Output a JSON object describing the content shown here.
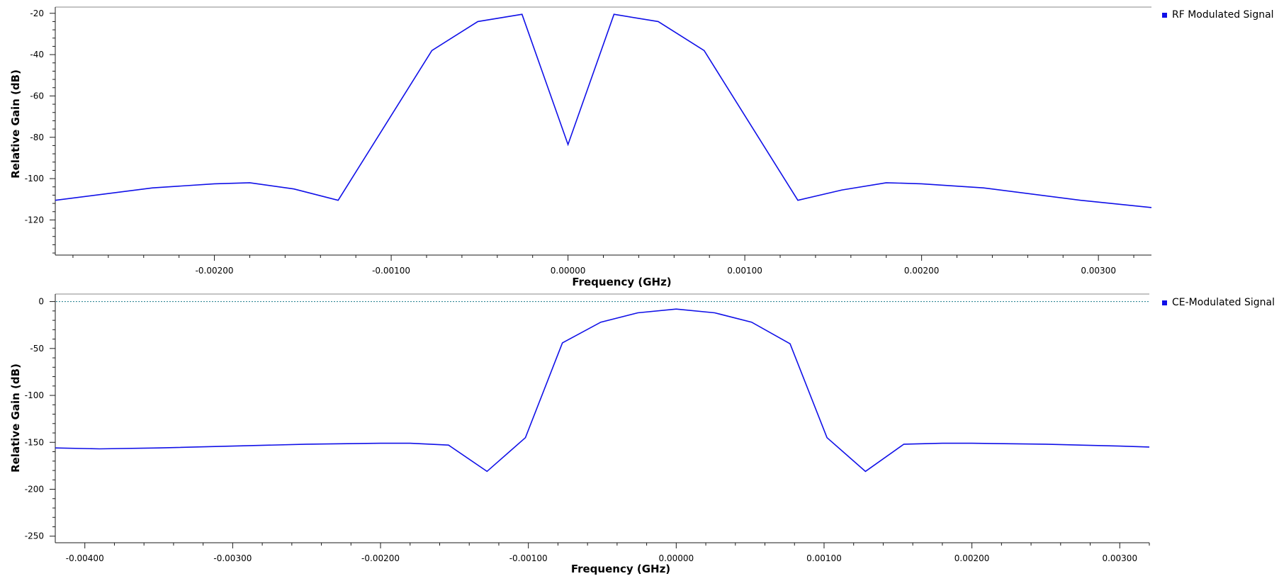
{
  "chart_data": [
    {
      "type": "line",
      "xlabel": "Frequency (GHz)",
      "ylabel": "Relative Gain (dB)",
      "xlim": [
        -0.0029,
        0.0033
      ],
      "ylim": [
        -137,
        -17
      ],
      "x_ticks": [
        -0.002,
        -0.001,
        0.0,
        0.001,
        0.002,
        0.003
      ],
      "x_tick_labels": [
        "-0.00200",
        "-0.00100",
        "0.00000",
        "0.00100",
        "0.00200",
        "0.00300"
      ],
      "y_ticks": [
        -20,
        -40,
        -60,
        -80,
        -100,
        -120
      ],
      "y_tick_labels": [
        "-20",
        "-40",
        "-60",
        "-80",
        "-100",
        "-120"
      ],
      "legend_position": "top-right",
      "series": [
        {
          "name": "RF Modulated Signal",
          "color": "#1010e8",
          "x": [
            -0.0029,
            -0.00235,
            -0.002,
            -0.0018,
            -0.00155,
            -0.0013,
            -0.001,
            -0.00077,
            -0.00051,
            -0.00026,
            0.0,
            0.00026,
            0.00051,
            0.00077,
            0.001,
            0.0013,
            0.00155,
            0.0018,
            0.002,
            0.00235,
            0.0029,
            0.0033
          ],
          "y": [
            -110.5,
            -104.5,
            -102.5,
            -102,
            -105,
            -110.5,
            -69.5,
            -38,
            -24,
            -20.5,
            -83.5,
            -20.5,
            -24,
            -38,
            -69.5,
            -110.5,
            -105.5,
            -102,
            -102.5,
            -104.5,
            -110.5,
            -114
          ]
        }
      ]
    },
    {
      "type": "line",
      "xlabel": "Frequency (GHz)",
      "ylabel": "Relative Gain (dB)",
      "xlim": [
        -0.0042,
        0.0032
      ],
      "ylim": [
        -257,
        8
      ],
      "x_ticks": [
        -0.004,
        -0.003,
        -0.002,
        -0.001,
        0.0,
        0.001,
        0.002,
        0.003
      ],
      "x_tick_labels": [
        "-0.00400",
        "-0.00300",
        "-0.00200",
        "-0.00100",
        "0.00000",
        "0.00100",
        "0.00200",
        "0.00300"
      ],
      "y_ticks": [
        0,
        -50,
        -100,
        -150,
        -200,
        -250
      ],
      "y_tick_labels": [
        "0",
        "-50",
        "-100",
        "-150",
        "-200",
        "-250"
      ],
      "reference_line_y": 0,
      "reference_line_color": "#1a7a8a",
      "legend_position": "top-right",
      "series": [
        {
          "name": "CE-Modulated Signal",
          "color": "#1010e8",
          "x": [
            -0.0042,
            -0.0039,
            -0.0035,
            -0.003,
            -0.0025,
            -0.002,
            -0.0018,
            -0.00154,
            -0.00128,
            -0.00102,
            -0.00077,
            -0.00051,
            -0.00026,
            0.0,
            0.00026,
            0.00051,
            0.00077,
            0.00102,
            0.00128,
            0.00154,
            0.0018,
            0.002,
            0.0025,
            0.003,
            0.0032
          ],
          "y": [
            -156,
            -157,
            -156,
            -154,
            -152,
            -151,
            -151,
            -153,
            -181,
            -145,
            -44,
            -22,
            -12,
            -8,
            -12,
            -22,
            -45,
            -145,
            -181,
            -152,
            -151,
            -151,
            -152,
            -154,
            -155
          ]
        }
      ]
    }
  ]
}
